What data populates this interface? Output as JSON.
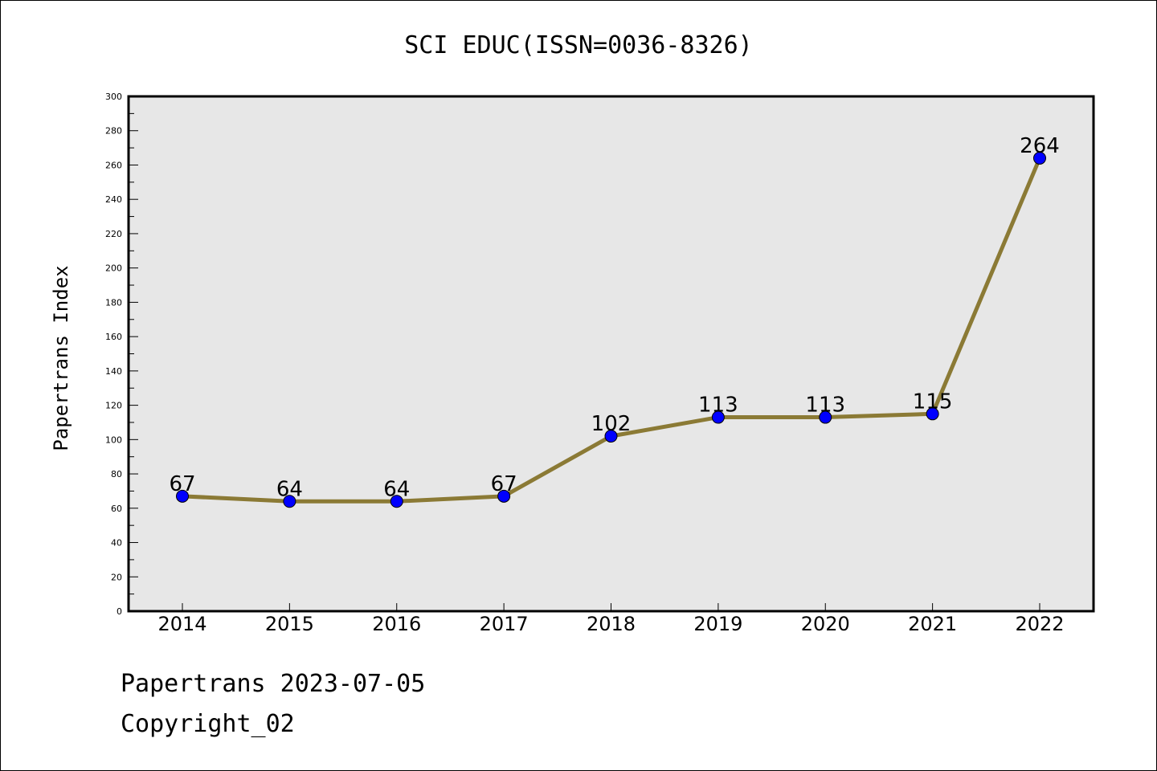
{
  "chart_data": {
    "type": "line",
    "title": "SCI EDUC(ISSN=0036-8326)",
    "xlabel": "",
    "ylabel": "Papertrans Index",
    "categories": [
      "2014",
      "2015",
      "2016",
      "2017",
      "2018",
      "2019",
      "2020",
      "2021",
      "2022"
    ],
    "values": [
      67,
      64,
      64,
      67,
      102,
      113,
      113,
      115,
      264
    ],
    "data_labels": [
      "67",
      "64",
      "64",
      "67",
      "102",
      "113",
      "113",
      "115",
      "264"
    ],
    "ylim": [
      0,
      300
    ],
    "yticks": [
      0,
      20,
      40,
      60,
      80,
      100,
      120,
      140,
      160,
      180,
      200,
      220,
      240,
      260,
      280,
      300
    ],
    "ytick_labels": [
      "0",
      "20",
      "40",
      "60",
      "80",
      "100",
      "120",
      "140",
      "160",
      "180",
      "200",
      "220",
      "240",
      "260",
      "280",
      "300"
    ],
    "grid": false,
    "colors": {
      "line": "#8b7a35",
      "marker": "#0000ff",
      "plot_background": "#e7e7e7"
    }
  },
  "footer": {
    "line1": "Papertrans 2023-07-05",
    "line2": "Copyright_02"
  }
}
